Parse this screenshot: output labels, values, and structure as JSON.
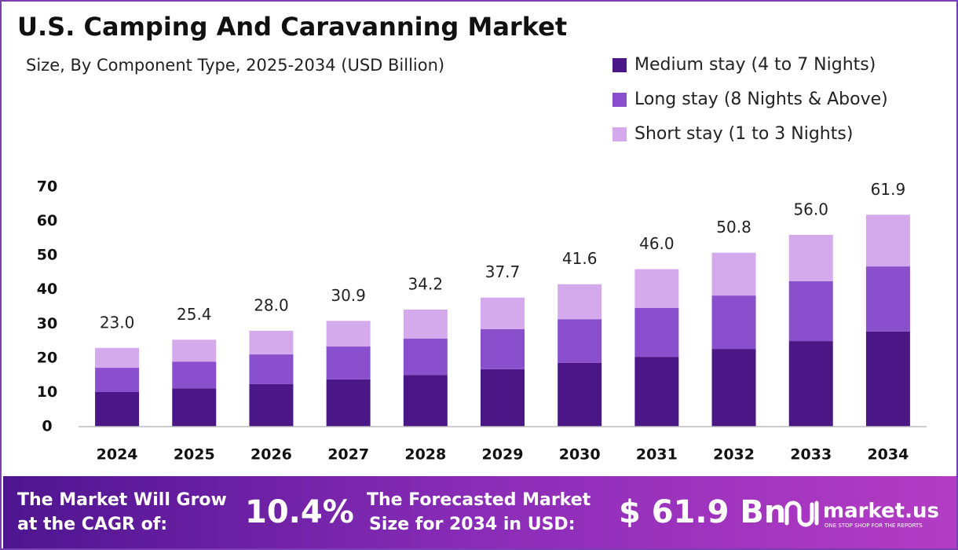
{
  "chart_data": {
    "type": "stacked_bar",
    "title": "U.S. Camping And Caravanning Market",
    "subtitle": "Size, By Component Type, 2025-2034 (USD Billion)",
    "categories": [
      "2024",
      "2025",
      "2026",
      "2027",
      "2028",
      "2029",
      "2030",
      "2031",
      "2032",
      "2033",
      "2034"
    ],
    "series": [
      {
        "name": "Medium stay (4 to 7 Nights)",
        "color": "#4b1685",
        "values": [
          10.1,
          11.2,
          12.4,
          13.8,
          15.1,
          16.8,
          18.6,
          20.4,
          22.7,
          25.0,
          27.8
        ]
      },
      {
        "name": "Long stay (8 Nights & Above)",
        "color": "#8a4fcc",
        "values": [
          7.1,
          7.8,
          8.7,
          9.6,
          10.6,
          11.7,
          12.8,
          14.3,
          15.6,
          17.5,
          19.0
        ]
      },
      {
        "name": "Short stay (1 to 3 Nights)",
        "color": "#d5aaec",
        "values": [
          5.8,
          6.4,
          6.9,
          7.5,
          8.5,
          9.2,
          10.2,
          11.3,
          12.5,
          13.5,
          15.1
        ]
      }
    ],
    "totals": [
      23.0,
      25.4,
      28.0,
      30.9,
      34.2,
      37.7,
      41.6,
      46.0,
      50.8,
      56.0,
      61.9
    ],
    "total_labels": [
      "23.0",
      "25.4",
      "28.0",
      "30.9",
      "34.2",
      "37.7",
      "41.6",
      "46.0",
      "50.8",
      "56.0",
      "61.9"
    ],
    "ylim": [
      0,
      70
    ],
    "yticks": [
      0,
      10,
      20,
      30,
      40,
      50,
      60,
      70
    ],
    "grid": false,
    "legend": "top-right"
  },
  "footer": {
    "cagr_text": [
      "The Market Will Grow",
      "at the CAGR of:"
    ],
    "cagr_value": "10.4%",
    "forecast_text": [
      "The Forecasted Market",
      "Size for 2034 in USD:"
    ],
    "forecast_value": "$ 61.9 Bn",
    "brand": "market.us",
    "tagline": "ONE STOP SHOP FOR THE REPORTS"
  }
}
